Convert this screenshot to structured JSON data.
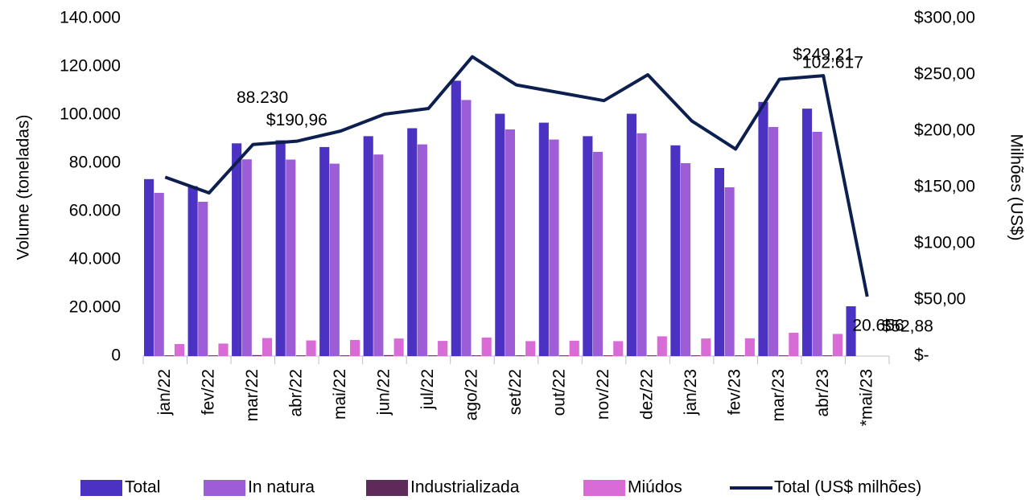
{
  "chart_data": {
    "type": "bar",
    "y_label": "Volume (toneladas)",
    "y2_label": "Milhões (US$)",
    "categories": [
      "jan/22",
      "fev/22",
      "mar/22",
      "abr/22",
      "mai/22",
      "jun/22",
      "jul/22",
      "ago/22",
      "set/22",
      "out/22",
      "nov/22",
      "dez/22",
      "jan/23",
      "fev/23",
      "mar/23",
      "abr/23",
      "*mai/23"
    ],
    "series": [
      {
        "name": "Total",
        "color": "#4b32c3",
        "values": [
          73400,
          70500,
          88230,
          89500,
          86700,
          91200,
          94500,
          114200,
          100500,
          96800,
          91200,
          100500,
          87400,
          78000,
          105400,
          102617,
          20656
        ],
        "value_labels": [
          null,
          null,
          "88.230",
          null,
          null,
          null,
          null,
          null,
          null,
          null,
          null,
          null,
          null,
          null,
          null,
          "102.617",
          "20.656"
        ]
      },
      {
        "name": "In natura",
        "color": "#9c5dd6",
        "values": [
          67700,
          64000,
          81600,
          81500,
          79800,
          83600,
          87800,
          106200,
          94000,
          89800,
          84700,
          92400,
          80000,
          70000,
          95000,
          93000,
          0
        ]
      },
      {
        "name": "Industrializada",
        "color": "#5e2a5a",
        "values": [
          300,
          300,
          400,
          300,
          300,
          400,
          300,
          300,
          300,
          300,
          300,
          300,
          300,
          300,
          300,
          300,
          0
        ]
      },
      {
        "name": "Miúdos",
        "color": "#d96bd6",
        "values": [
          5000,
          5200,
          7500,
          6500,
          6700,
          7300,
          6300,
          7700,
          6200,
          6400,
          6200,
          8200,
          7300,
          7400,
          9700,
          9200,
          0
        ]
      },
      {
        "name": "Total (US$ milhões)",
        "type": "line",
        "axis": "y2",
        "color": "#0d1f4f",
        "values": [
          159,
          145,
          188,
          190.96,
          200,
          215,
          220,
          266,
          241,
          234,
          227,
          250,
          209,
          184,
          246,
          249.21,
          52.88
        ],
        "value_labels": [
          null,
          null,
          null,
          "$190,96",
          null,
          null,
          null,
          null,
          null,
          null,
          null,
          null,
          null,
          null,
          null,
          "$249,21",
          "$52,88"
        ]
      }
    ],
    "ylim": [
      0,
      140000
    ],
    "yticks": [
      0,
      {
        "value": 20000,
        "label": "20.000"
      },
      {
        "value": 40000,
        "label": "40.000"
      },
      {
        "value": 60000,
        "label": "60.000"
      },
      {
        "value": 80000,
        "label": "80.000"
      },
      {
        "value": 100000,
        "label": "100.000"
      },
      {
        "value": 120000,
        "label": "120.000"
      },
      {
        "value": 140000,
        "label": "140.000"
      }
    ],
    "y2lim": [
      0,
      300
    ],
    "y2ticks": [
      {
        "value": 0,
        "label": "$-"
      },
      {
        "value": 50,
        "label": "$50,00"
      },
      {
        "value": 100,
        "label": "$100,00"
      },
      {
        "value": 150,
        "label": "$150,00"
      },
      {
        "value": 200,
        "label": "$200,00"
      },
      {
        "value": 250,
        "label": "$250,00"
      },
      {
        "value": 300,
        "label": "$300,00"
      }
    ],
    "legend": "bottom"
  }
}
